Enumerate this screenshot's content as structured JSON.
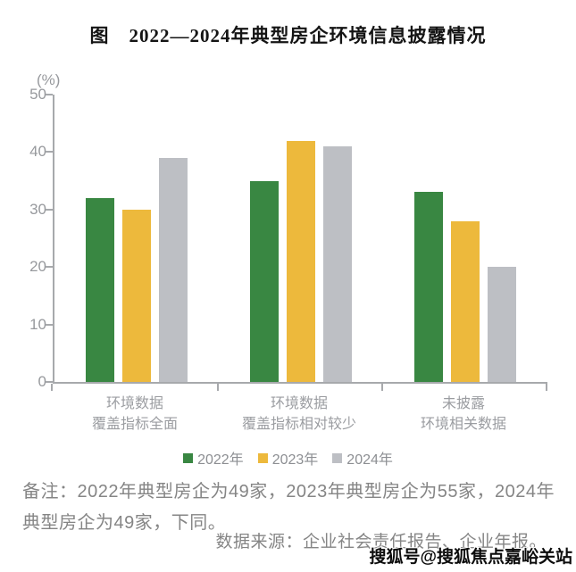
{
  "title": "图　2022—2024年典型房企环境信息披露情况",
  "chart_data": {
    "type": "bar",
    "title": "图 2022—2024年典型房企环境信息披露情况",
    "y_unit": "(%)",
    "xlabel": "",
    "ylabel": "(%)",
    "ylim": [
      0,
      50
    ],
    "y_ticks": [
      0,
      10,
      20,
      30,
      40,
      50
    ],
    "grid": false,
    "legend_position": "bottom",
    "categories": [
      "环境数据\n覆盖指标全面",
      "环境数据\n覆盖指标相对较少",
      "未披露\n环境相关数据"
    ],
    "series": [
      {
        "name": "2022年",
        "color": "#398742",
        "values": [
          32,
          35,
          33
        ]
      },
      {
        "name": "2023年",
        "color": "#EDB93C",
        "values": [
          30,
          42,
          28
        ]
      },
      {
        "name": "2024年",
        "color": "#BDBFC4",
        "values": [
          39,
          41,
          20
        ]
      }
    ]
  },
  "note": "备注：2022年典型房企为49家，2023年典型房企为55家，2024年典型房企为49家，下同。",
  "source": "数据来源：企业社会责任报告、企业年报。",
  "watermark": "搜狐号@搜狐焦点嘉峪关站",
  "colors": {
    "axis": "#a7a9ac",
    "tick_label": "#97999d",
    "category_label": "#9b9da1",
    "legend_label": "#8d8f93",
    "note_text": "#858585",
    "title_text": "#141414",
    "watermark_text": "#0c0c0c"
  }
}
